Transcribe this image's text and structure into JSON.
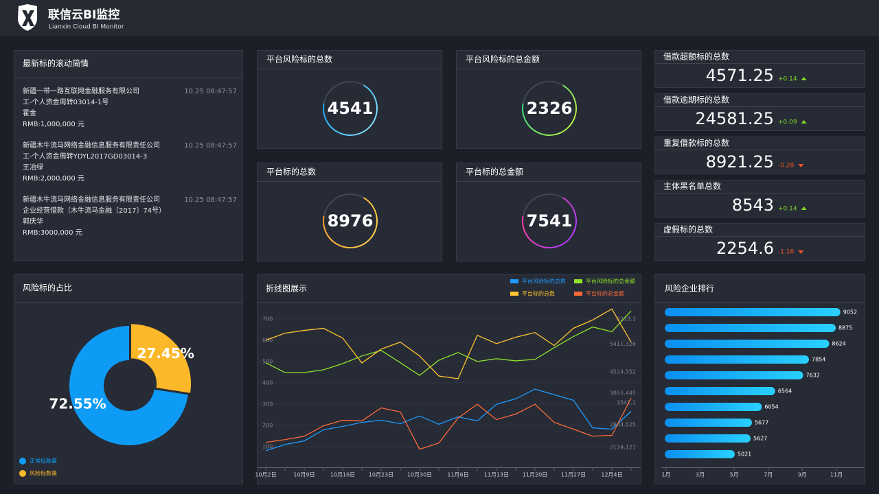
{
  "header": {
    "title": "联信云BI监控",
    "subtitle": "Lianxin Cloud BI Monitor"
  },
  "news": {
    "title": "最新标的滚动简情",
    "items": [
      {
        "lines": [
          "新疆一带一路互联网金融服务有限公司",
          "工-个人资金周转03014-1号",
          "霍金",
          "RMB:1,000,000 元"
        ],
        "time": "10.25  08:47:57"
      },
      {
        "lines": [
          "新疆木牛流马网络金融信息服务有限责任公司",
          "工-个人资金周转YDYL2017GD03014-3",
          "王冶绿",
          "RMB:2,000,000 元"
        ],
        "time": "10.25  08:47:57"
      },
      {
        "lines": [
          "新疆木牛流马网络金融信息服务有限责任公司",
          "企业经营借款（木牛流马金融〔2017〕74号）",
          "郭庆华",
          "RMB:3000,000 元"
        ],
        "time": "10.25  08:47:57"
      }
    ]
  },
  "kpis": [
    {
      "title": "平台风险标的总数",
      "value": "4541",
      "colors": [
        "#1aa3ff",
        "#7fe0ff"
      ]
    },
    {
      "title": "平台风险标的总金额",
      "value": "2326",
      "colors": [
        "#2fdc7a",
        "#b8f04a"
      ]
    },
    {
      "title": "平台标的总数",
      "value": "8976",
      "colors": [
        "#ff9b2f",
        "#ffd34a"
      ]
    },
    {
      "title": "平台标的总金额",
      "value": "7541",
      "colors": [
        "#ff3fa0",
        "#b43cff"
      ]
    }
  ],
  "stats": [
    {
      "title": "借款超额标的总数",
      "value": "4571.25",
      "change": "+0.14",
      "direction": "up"
    },
    {
      "title": "借款逾期标的总数",
      "value": "24581.25",
      "change": "+0.09",
      "direction": "up"
    },
    {
      "title": "重复借款标的总数",
      "value": "8921.25",
      "change": "-0.28",
      "direction": "down"
    },
    {
      "title": "主体黑名单总数",
      "value": "8543",
      "change": "+0.14",
      "direction": "up"
    },
    {
      "title": "虚假标的总数",
      "value": "2254.6",
      "change": "-1.16",
      "direction": "down"
    }
  ],
  "chart_data": [
    {
      "type": "pie",
      "title": "风险标的占比",
      "categories": [
        "正常标数量",
        "风险标数量"
      ],
      "values": [
        72.55,
        27.45
      ],
      "value_labels": [
        "72.55%",
        "27.45%"
      ],
      "colors": [
        "#0e9bf5",
        "#fbb829"
      ],
      "donut": true
    },
    {
      "type": "line",
      "title": "折线图展示",
      "categories": [
        "10月2日",
        null,
        "10月9日",
        null,
        "10月16日",
        null,
        "10月23日",
        null,
        "10月30日",
        null,
        "11月6日",
        null,
        "11月13日",
        null,
        "11月20日",
        null,
        "11月27日",
        null,
        "12月4日",
        null
      ],
      "series": [
        {
          "name": "平台风险标的总数",
          "color": "#1e9bff",
          "values": [
            81,
            110,
            127,
            179,
            195,
            214,
            224,
            208,
            244,
            205,
            240,
            221,
            299,
            325,
            370,
            344,
            318,
            188,
            182,
            266
          ]
        },
        {
          "name": "平台风险标的总金额",
          "color": "#8fe32b",
          "values": [
            494,
            448,
            448,
            461,
            490,
            526,
            552,
            494,
            435,
            506,
            542,
            500,
            513,
            503,
            510,
            565,
            617,
            662,
            640,
            737
          ]
        },
        {
          "name": "平台标的总数",
          "color": "#ffc531",
          "values": [
            600,
            633,
            646,
            656,
            610,
            493,
            558,
            591,
            526,
            432,
            419,
            623,
            584,
            614,
            636,
            575,
            656,
            695,
            747,
            591
          ]
        },
        {
          "name": "平台标的总金额",
          "color": "#ff6a3a",
          "values": [
            120,
            133,
            149,
            198,
            224,
            221,
            282,
            263,
            88,
            117,
            234,
            299,
            227,
            253,
            299,
            214,
            182,
            149,
            153,
            328
          ]
        }
      ],
      "ylim": [
        0,
        780
      ],
      "yticks": [
        100,
        200,
        300,
        400,
        500,
        600,
        700
      ],
      "y2lim": [
        1468,
        6760
      ],
      "y2ticks": [
        2124.121,
        2844.525,
        3541.1,
        3855.445,
        4524.552,
        5411.326,
        6213.1
      ]
    },
    {
      "type": "hbar",
      "title": "风险企业排行",
      "values": [
        9052,
        8875,
        8624,
        7854,
        7632,
        6564,
        6054,
        5677,
        5627,
        5021
      ],
      "xlim": [
        2350,
        9950
      ],
      "x_labels": [
        "1月",
        "3月",
        "5月",
        "7月",
        "9月",
        "11月"
      ],
      "colors": [
        "#0a8ff0",
        "#29d0ff"
      ]
    }
  ]
}
